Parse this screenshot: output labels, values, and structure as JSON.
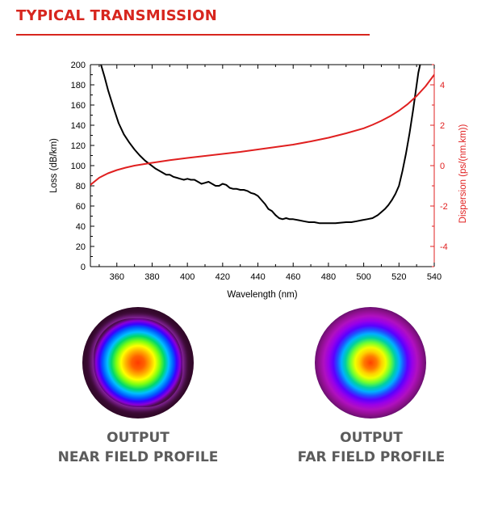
{
  "section": {
    "title": "TYPICAL TRANSMISSION"
  },
  "colors": {
    "accent": "#d7261e",
    "loss_series": "#000000",
    "dispersion_series": "#e02020",
    "caption": "#5b5b5b"
  },
  "chart_data": {
    "type": "line",
    "title": "",
    "xlabel": "Wavelength (nm)",
    "ylabel": "Loss (dB/km)",
    "y2label": "Dispersion (ps/(nm.km))",
    "xlim": [
      345,
      540
    ],
    "ylim": [
      0,
      200
    ],
    "y2lim": [
      -5,
      5
    ],
    "xticks": [
      360,
      380,
      400,
      420,
      440,
      460,
      480,
      500,
      520,
      540
    ],
    "yticks": [
      0,
      20,
      40,
      60,
      80,
      100,
      120,
      140,
      160,
      180,
      200
    ],
    "y2ticks": [
      -4,
      -2,
      0,
      2,
      4
    ],
    "grid": false,
    "legend": "none",
    "series": [
      {
        "axis": "left",
        "color": "#000000",
        "x": [
          351,
          353,
          355,
          358,
          361,
          364,
          367,
          370,
          373,
          376,
          379,
          382,
          385,
          388,
          390,
          392,
          394,
          396,
          398,
          400,
          402,
          404,
          406,
          408,
          410,
          412,
          414,
          416,
          418,
          420,
          422,
          424,
          426,
          428,
          430,
          432,
          434,
          436,
          438,
          440,
          442,
          444,
          446,
          448,
          450,
          452,
          454,
          456,
          458,
          460,
          463,
          466,
          469,
          472,
          475,
          478,
          481,
          484,
          487,
          490,
          493,
          496,
          499,
          502,
          505,
          508,
          510,
          512,
          514,
          516,
          518,
          520,
          522,
          524,
          526,
          528,
          530,
          531,
          532
        ],
        "y": [
          200,
          188,
          175,
          158,
          142,
          131,
          123,
          116,
          110,
          105,
          101,
          97,
          94,
          91,
          91,
          89,
          88,
          87,
          86,
          87,
          86,
          86,
          84,
          82,
          83,
          84,
          82,
          80,
          80,
          82,
          81,
          78,
          77,
          77,
          76,
          76,
          75,
          73,
          72,
          70,
          66,
          62,
          57,
          55,
          51,
          48,
          47,
          48,
          47,
          47,
          46,
          45,
          44,
          44,
          43,
          43,
          43,
          43,
          43.5,
          44,
          44,
          45,
          46,
          47,
          48,
          51,
          54,
          57,
          61,
          66,
          72,
          80,
          95,
          112,
          132,
          155,
          180,
          192,
          200
        ]
      },
      {
        "axis": "right",
        "color": "#e02020",
        "x": [
          345,
          350,
          355,
          360,
          365,
          370,
          375,
          380,
          390,
          400,
          410,
          420,
          430,
          440,
          450,
          460,
          470,
          480,
          490,
          500,
          505,
          510,
          515,
          520,
          525,
          530,
          535,
          540
        ],
        "y": [
          -0.95,
          -0.6,
          -0.38,
          -0.22,
          -0.1,
          0.0,
          0.07,
          0.14,
          0.27,
          0.38,
          0.48,
          0.58,
          0.68,
          0.8,
          0.92,
          1.04,
          1.2,
          1.38,
          1.6,
          1.85,
          2.02,
          2.22,
          2.45,
          2.72,
          3.05,
          3.45,
          3.92,
          4.5
        ]
      }
    ]
  },
  "profiles": [
    {
      "label_line1": "OUTPUT",
      "label_line2": "NEAR FIELD PROFILE",
      "image": "near-field-beam-profile"
    },
    {
      "label_line1": "OUTPUT",
      "label_line2": "FAR FIELD PROFILE",
      "image": "far-field-beam-profile"
    }
  ]
}
